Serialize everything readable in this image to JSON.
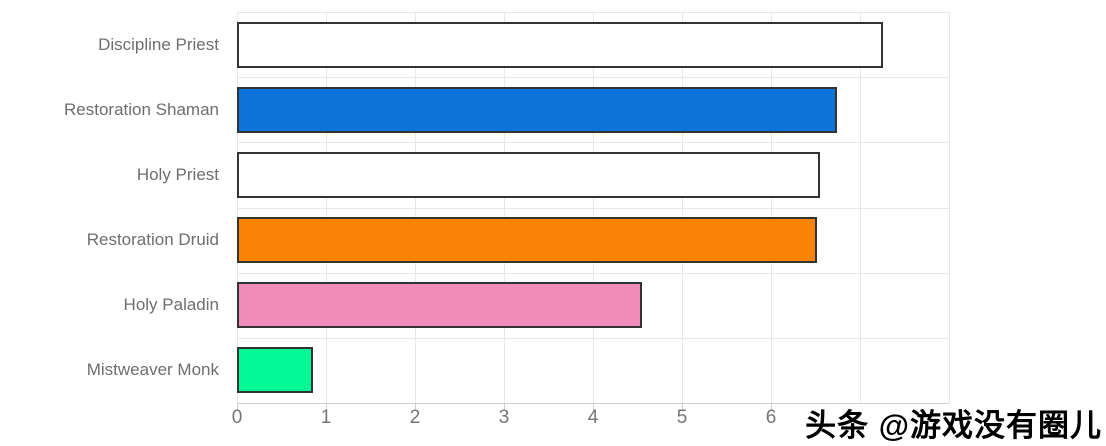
{
  "chart_data": {
    "type": "bar",
    "orientation": "horizontal",
    "title": "",
    "xlabel": "",
    "ylabel": "",
    "categories": [
      "Discipline Priest",
      "Restoration Shaman",
      "Holy Priest",
      "Restoration Druid",
      "Holy Paladin",
      "Mistweaver Monk"
    ],
    "values": [
      7.26,
      6.74,
      6.55,
      6.52,
      4.55,
      0.85
    ],
    "bar_colors": [
      "#ffffff",
      "#0d72da",
      "#ffffff",
      "#fb8306",
      "#f18cba",
      "#00f996"
    ],
    "bar_border_color": "#333333",
    "xlim": [
      0,
      8
    ],
    "gridline_positions": [
      0,
      1,
      2,
      3,
      4,
      5,
      6,
      7,
      8
    ],
    "x_tick_labels": [
      "0",
      "1",
      "2",
      "3",
      "4",
      "5",
      "6"
    ],
    "grid": true,
    "legend": false,
    "colors": {
      "gridline": "#e8e8e8",
      "axis_line": "#cfcfcf",
      "category_label": "#6e6e6e",
      "tick_label": "#757575"
    }
  },
  "watermark": {
    "text": "头条 @游戏没有圈儿"
  }
}
